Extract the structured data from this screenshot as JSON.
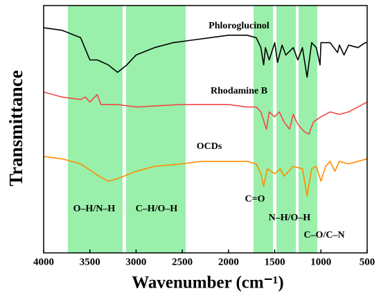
{
  "chart_data": {
    "type": "line",
    "ylabel": "Transmittance",
    "xlabel": "Wavenumber (cm⁻¹)",
    "xlim": [
      4000,
      500
    ],
    "xticks": [
      4000,
      3500,
      3000,
      2500,
      2000,
      1500,
      1000,
      500
    ],
    "ylim": [
      0,
      100
    ],
    "band_color": "#9af0aa",
    "bands": [
      [
        3738,
        3146
      ],
      [
        3108,
        2464
      ],
      [
        1729,
        1519
      ],
      [
        1481,
        1272
      ],
      [
        1242,
        1040
      ]
    ],
    "annotations": [
      "O–H/N–H",
      "C–H/O–H",
      "C=O",
      "N–H/O–H",
      "C–O/C–N"
    ],
    "series": [
      {
        "name": "Phloroglucinol",
        "color": "#000000",
        "x": [
          4000,
          3800,
          3600,
          3500,
          3420,
          3300,
          3200,
          3100,
          3000,
          2800,
          2600,
          2400,
          2200,
          2000,
          1800,
          1700,
          1650,
          1620,
          1600,
          1560,
          1500,
          1470,
          1420,
          1380,
          1300,
          1250,
          1200,
          1150,
          1100,
          1050,
          1010,
          1000,
          900,
          820,
          800,
          750,
          700,
          600,
          520,
          500
        ],
        "values": [
          91,
          90,
          87,
          78,
          78,
          76,
          73,
          76,
          80,
          83,
          85,
          86,
          87,
          88,
          88,
          87,
          83,
          76,
          83,
          78,
          85,
          77,
          84,
          80,
          83,
          78,
          83,
          71,
          85,
          83,
          76,
          85,
          85,
          81,
          84,
          80,
          84,
          83,
          85,
          85
        ]
      },
      {
        "name": "Rhodamine B",
        "color": "#f04848",
        "x": [
          4000,
          3800,
          3600,
          3550,
          3500,
          3420,
          3380,
          3200,
          3000,
          2500,
          2000,
          1800,
          1700,
          1650,
          1590,
          1560,
          1500,
          1450,
          1400,
          1340,
          1300,
          1250,
          1180,
          1130,
          1080,
          1000,
          900,
          800,
          700,
          600,
          500
        ],
        "values": [
          65,
          63,
          62,
          63,
          61,
          64,
          60,
          60,
          59,
          60,
          60,
          59,
          59,
          57,
          50,
          57,
          55,
          57,
          53,
          50,
          56,
          52,
          49,
          48,
          53,
          55,
          57,
          56,
          57,
          59,
          61
        ]
      },
      {
        "name": "OCDs",
        "color": "#ff8a00",
        "x": [
          4000,
          3800,
          3600,
          3400,
          3300,
          3200,
          3000,
          2800,
          2500,
          2300,
          2000,
          1800,
          1700,
          1650,
          1620,
          1580,
          1500,
          1440,
          1400,
          1300,
          1200,
          1150,
          1100,
          1050,
          1000,
          950,
          900,
          850,
          800,
          700,
          600,
          500
        ],
        "values": [
          39,
          38,
          36,
          31,
          29,
          30,
          33,
          35,
          36,
          37,
          37,
          37,
          36,
          32,
          27,
          34,
          32,
          34,
          31,
          35,
          34,
          23,
          34,
          35,
          29,
          35,
          37,
          33,
          37,
          36,
          37,
          38
        ]
      }
    ]
  }
}
